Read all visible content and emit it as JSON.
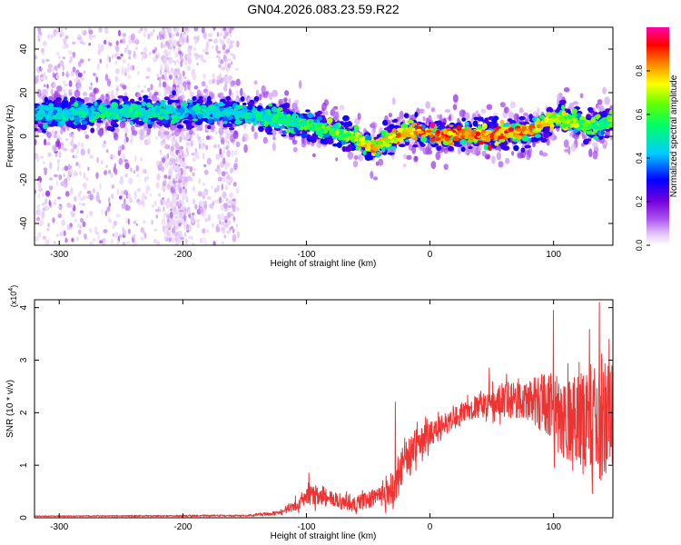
{
  "title": "GN04.2026.083.23.59.R22",
  "chart_data": [
    {
      "type": "heatmap",
      "xlabel": "Height of straight line (km)",
      "ylabel": "Frequency (Hz)",
      "xlim": [
        -320,
        148
      ],
      "ylim": [
        -50,
        50
      ],
      "x_ticks": [
        -300,
        -200,
        -100,
        0,
        100
      ],
      "x_tick_labels": [
        "-300",
        "-200",
        "-100",
        "0",
        "100"
      ],
      "y_ticks": [
        -40,
        -20,
        0,
        20,
        40
      ],
      "y_tick_labels": [
        "-40",
        "-20",
        "0",
        "20",
        "40"
      ],
      "colorbar": {
        "label": "Normalized spectral amplitude",
        "range": [
          0,
          1
        ],
        "ticks": [
          0,
          0.2,
          0.4,
          0.6,
          0.8
        ],
        "tick_labels": [
          "0.0",
          "0.2",
          "0.4",
          "0.6",
          "0.8"
        ],
        "colors": [
          "#ffffff",
          "#e4c8f8",
          "#aa55ee",
          "#7700dd",
          "#0000ff",
          "#00ccff",
          "#00ff66",
          "#66ff00",
          "#ffff00",
          "#ff8800",
          "#ff0000",
          "#ff00aa"
        ]
      },
      "ridge": {
        "x": [
          -320,
          -290,
          -260,
          -230,
          -200,
          -170,
          -150,
          -130,
          -110,
          -90,
          -70,
          -55,
          -45,
          -35,
          -25,
          -15,
          -5,
          10,
          30,
          50,
          70,
          85,
          95,
          105,
          120,
          135,
          148
        ],
        "y": [
          10,
          11,
          11,
          11,
          11,
          11,
          10,
          9,
          7,
          4,
          1,
          -3,
          -5,
          -2,
          1,
          2,
          2,
          1,
          1,
          1,
          2,
          3,
          7,
          9,
          6,
          4,
          7
        ],
        "peak_amplitude": [
          0.45,
          0.5,
          0.55,
          0.55,
          0.5,
          0.5,
          0.5,
          0.55,
          0.6,
          0.65,
          0.7,
          0.8,
          0.85,
          0.8,
          0.85,
          0.9,
          0.95,
          0.95,
          0.9,
          0.95,
          0.9,
          0.85,
          0.8,
          0.75,
          0.7,
          0.65,
          0.7
        ]
      },
      "scatter_noise": {
        "x_range": [
          -320,
          -155
        ],
        "y_range": [
          -50,
          50
        ]
      }
    },
    {
      "type": "line",
      "xlabel": "Height of straight line (km)",
      "ylabel": "SNR (10 * v/v)",
      "multiplier_label": "(x10",
      "multiplier_exp": "4",
      "xlim": [
        -320,
        148
      ],
      "ylim": [
        0,
        4.15
      ],
      "x_ticks": [
        -300,
        -200,
        -100,
        0,
        100
      ],
      "x_tick_labels": [
        "-300",
        "-200",
        "-100",
        "0",
        "100"
      ],
      "y_ticks": [
        0,
        1,
        2,
        3,
        4
      ],
      "y_tick_labels": [
        "0",
        "1",
        "2",
        "3",
        "4"
      ],
      "color": "#ee3333",
      "envelope": {
        "x": [
          -320,
          -150,
          -120,
          -110,
          -100,
          -90,
          -80,
          -70,
          -60,
          -50,
          -40,
          -30,
          -25,
          -20,
          -10,
          0,
          10,
          20,
          30,
          40,
          50,
          60,
          70,
          80,
          90,
          100,
          110,
          120,
          130,
          140,
          148
        ],
        "mean": [
          0.03,
          0.04,
          0.1,
          0.25,
          0.4,
          0.45,
          0.35,
          0.3,
          0.25,
          0.35,
          0.4,
          0.5,
          0.9,
          1.1,
          1.4,
          1.6,
          1.75,
          1.9,
          2.05,
          2.15,
          2.2,
          2.25,
          2.2,
          2.2,
          2.2,
          2.05,
          1.9,
          2.0,
          1.9,
          1.8,
          2.0
        ],
        "spread": [
          0.01,
          0.02,
          0.05,
          0.15,
          0.2,
          0.25,
          0.2,
          0.2,
          0.2,
          0.2,
          0.25,
          0.4,
          0.45,
          0.4,
          0.35,
          0.3,
          0.25,
          0.25,
          0.25,
          0.3,
          0.35,
          0.45,
          0.45,
          0.5,
          0.7,
          0.9,
          1.0,
          1.2,
          1.3,
          1.4,
          1.3
        ]
      },
      "peaks": [
        {
          "x": -98,
          "y": 0.85
        },
        {
          "x": -28,
          "y": 2.2
        },
        {
          "x": 48,
          "y": 2.85
        },
        {
          "x": 100,
          "y": 3.95
        },
        {
          "x": 137,
          "y": 4.1
        },
        {
          "x": 145,
          "y": 3.4
        }
      ]
    }
  ]
}
